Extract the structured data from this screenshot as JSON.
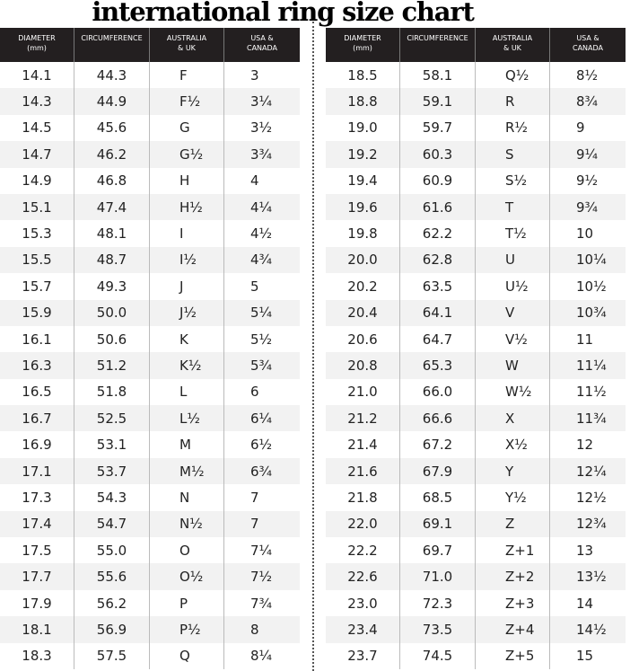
{
  "title": "international ring size chart",
  "headers": [
    "DIAMETER\n(mm)",
    "CIRCUMFERENCE",
    "AUSTRALIA\n& UK",
    "USA &\nCANADA"
  ],
  "left_rows": [
    [
      "14.1",
      "44.3",
      "F",
      "3"
    ],
    [
      "14.3",
      "44.9",
      "F½",
      "3¼"
    ],
    [
      "14.5",
      "45.6",
      "G",
      "3½"
    ],
    [
      "14.7",
      "46.2",
      "G½",
      "3¾"
    ],
    [
      "14.9",
      "46.8",
      "H",
      "4"
    ],
    [
      "15.1",
      "47.4",
      "H½",
      "4¼"
    ],
    [
      "15.3",
      "48.1",
      "I",
      "4½"
    ],
    [
      "15.5",
      "48.7",
      "I½",
      "4¾"
    ],
    [
      "15.7",
      "49.3",
      "J",
      "5"
    ],
    [
      "15.9",
      "50.0",
      "J½",
      "5¼"
    ],
    [
      "16.1",
      "50.6",
      "K",
      "5½"
    ],
    [
      "16.3",
      "51.2",
      "K½",
      "5¾"
    ],
    [
      "16.5",
      "51.8",
      "L",
      "6"
    ],
    [
      "16.7",
      "52.5",
      "L½",
      "6¼"
    ],
    [
      "16.9",
      "53.1",
      "M",
      "6½"
    ],
    [
      "17.1",
      "53.7",
      "M½",
      "6¾"
    ],
    [
      "17.3",
      "54.3",
      "N",
      "7"
    ],
    [
      "17.4",
      "54.7",
      "N½",
      "7"
    ],
    [
      "17.5",
      "55.0",
      "O",
      "7¼"
    ],
    [
      "17.7",
      "55.6",
      "O½",
      "7½"
    ],
    [
      "17.9",
      "56.2",
      "P",
      "7¾"
    ],
    [
      "18.1",
      "56.9",
      "P½",
      "8"
    ],
    [
      "18.3",
      "57.5",
      "Q",
      "8¼"
    ]
  ],
  "right_rows": [
    [
      "18.5",
      "58.1",
      "Q½",
      "8½"
    ],
    [
      "18.8",
      "59.1",
      "R",
      "8¾"
    ],
    [
      "19.0",
      "59.7",
      "R½",
      "9"
    ],
    [
      "19.2",
      "60.3",
      "S",
      "9¼"
    ],
    [
      "19.4",
      "60.9",
      "S½",
      "9½"
    ],
    [
      "19.6",
      "61.6",
      "T",
      "9¾"
    ],
    [
      "19.8",
      "62.2",
      "T½",
      "10"
    ],
    [
      "20.0",
      "62.8",
      "U",
      "10¼"
    ],
    [
      "20.2",
      "63.5",
      "U½",
      "10½"
    ],
    [
      "20.4",
      "64.1",
      "V",
      "10¾"
    ],
    [
      "20.6",
      "64.7",
      "V½",
      "11"
    ],
    [
      "20.8",
      "65.3",
      "W",
      "11¼"
    ],
    [
      "21.0",
      "66.0",
      "W½",
      "11½"
    ],
    [
      "21.2",
      "66.6",
      "X",
      "11¾"
    ],
    [
      "21.4",
      "67.2",
      "X½",
      "12"
    ],
    [
      "21.6",
      "67.9",
      "Y",
      "12¼"
    ],
    [
      "21.8",
      "68.5",
      "Y½",
      "12½"
    ],
    [
      "22.0",
      "69.1",
      "Z",
      "12¾"
    ],
    [
      "22.2",
      "69.7",
      "Z+1",
      "13"
    ],
    [
      "22.6",
      "71.0",
      "Z+2",
      "13½"
    ],
    [
      "23.0",
      "72.3",
      "Z+3",
      "14"
    ],
    [
      "23.4",
      "73.5",
      "Z+4",
      "14½"
    ],
    [
      "23.7",
      "74.5",
      "Z+5",
      "15"
    ]
  ],
  "colors": {
    "header_bg": "#231f20",
    "header_text": "#ffffff",
    "row_alt": "#f2f2f2"
  }
}
